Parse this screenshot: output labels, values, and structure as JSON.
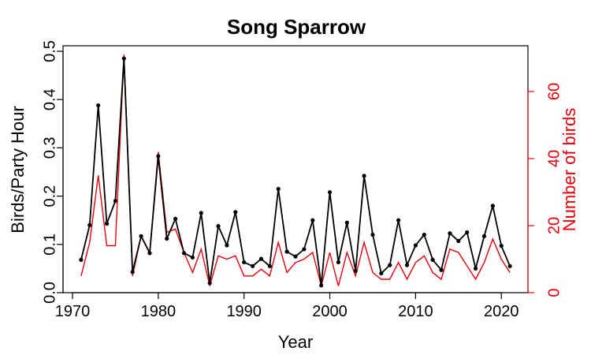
{
  "chart_data": {
    "type": "line",
    "title": "Song Sparrow",
    "xlabel": "Year",
    "ylabel": "Birds/Party Hour",
    "y2label": "Number of birds",
    "xlim": [
      1970,
      2022
    ],
    "ylim": [
      0,
      0.5
    ],
    "y2lim": [
      0,
      72
    ],
    "x_ticks": [
      1970,
      1980,
      1990,
      2000,
      2010,
      2020
    ],
    "y_ticks": [
      0.0,
      0.1,
      0.2,
      0.3,
      0.4,
      0.5
    ],
    "y_tick_labels": [
      "0.0",
      "0.1",
      "0.2",
      "0.3",
      "0.4",
      "0.5"
    ],
    "y2_ticks": [
      0,
      20,
      40,
      60
    ],
    "grid": false,
    "colors": {
      "left_series": "#000000",
      "right_series": "#e8000b",
      "right_axis": "#e8000b"
    },
    "x": [
      1971,
      1972,
      1973,
      1974,
      1975,
      1976,
      1977,
      1978,
      1979,
      1980,
      1981,
      1982,
      1983,
      1984,
      1985,
      1986,
      1987,
      1988,
      1989,
      1990,
      1991,
      1992,
      1993,
      1994,
      1995,
      1996,
      1997,
      1998,
      1999,
      2000,
      2001,
      2002,
      2003,
      2004,
      2005,
      2006,
      2007,
      2008,
      2009,
      2010,
      2011,
      2012,
      2013,
      2014,
      2015,
      2016,
      2017,
      2018,
      2019,
      2020,
      2021
    ],
    "series": [
      {
        "axis": "left",
        "values": [
          0.068,
          0.14,
          0.388,
          0.143,
          0.19,
          0.485,
          0.043,
          0.117,
          0.082,
          0.283,
          0.112,
          0.153,
          0.082,
          0.073,
          0.165,
          0.02,
          0.138,
          0.098,
          0.167,
          0.063,
          0.055,
          0.07,
          0.055,
          0.215,
          0.085,
          0.075,
          0.09,
          0.15,
          0.015,
          0.208,
          0.063,
          0.145,
          0.045,
          0.242,
          0.12,
          0.04,
          0.057,
          0.15,
          0.057,
          0.098,
          0.12,
          0.068,
          0.047,
          0.123,
          0.107,
          0.125,
          0.05,
          0.117,
          0.18,
          0.097,
          0.055
        ]
      },
      {
        "axis": "right",
        "values": [
          5,
          15,
          35,
          14,
          14,
          71,
          5,
          17,
          12,
          42,
          18,
          19,
          12,
          6,
          13,
          2,
          11,
          10,
          11,
          5,
          5,
          7,
          5,
          15,
          6,
          9,
          10,
          12,
          2,
          12,
          2,
          12,
          5,
          15,
          6,
          4,
          4,
          9,
          4,
          9,
          11,
          6,
          4,
          13,
          12,
          8,
          4,
          9,
          16,
          10,
          6
        ]
      }
    ]
  }
}
